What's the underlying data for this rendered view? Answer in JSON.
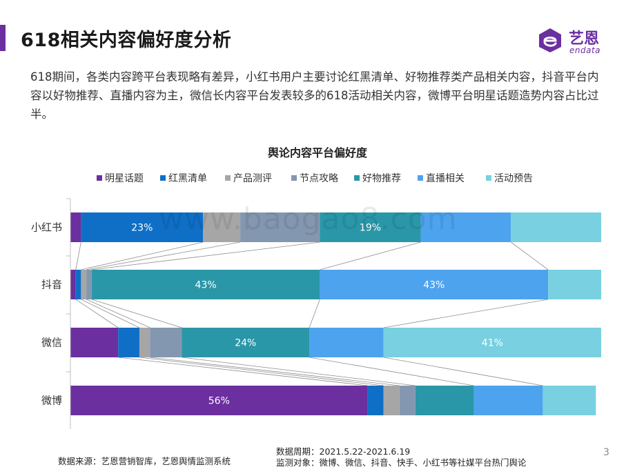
{
  "header": {
    "title": "618相关内容偏好度分析",
    "logo_name": "艺恩",
    "logo_sub": "endata"
  },
  "intro_text": "618期间，各类内容跨平台表现略有差异，小红书用户主要讨论红黑清单、好物推荐类产品相关内容，抖音平台内容以好物推荐、直播内容为主，微信长内容平台发表较多的618活动相关内容，微博平台明星话题造势内容占比过半。",
  "watermark": "www.baogao8.com",
  "chart_data": {
    "type": "bar",
    "orientation": "horizontal",
    "stacked": "percent",
    "title": "舆论内容平台偏好度",
    "categories": [
      "小红书",
      "抖音",
      "微信",
      "微博"
    ],
    "xlim": [
      0,
      100
    ],
    "legend_position": "top",
    "series": [
      {
        "name": "明星话题",
        "color": "#6b2fa0",
        "values": [
          2,
          1,
          9,
          56
        ]
      },
      {
        "name": "红黑清单",
        "color": "#0f6fc6",
        "values": [
          23,
          1,
          4,
          3
        ]
      },
      {
        "name": "产品测评",
        "color": "#a6a6a6",
        "values": [
          7,
          1,
          2,
          3
        ]
      },
      {
        "name": "节点攻略",
        "color": "#8497b0",
        "values": [
          15,
          1,
          6,
          3
        ]
      },
      {
        "name": "好物推荐",
        "color": "#2a97a8",
        "values": [
          19,
          43,
          24,
          11
        ]
      },
      {
        "name": "直播相关",
        "color": "#4ea3ee",
        "values": [
          17,
          43,
          14,
          13
        ]
      },
      {
        "name": "活动预告",
        "color": "#78d0e0",
        "values": [
          17,
          10,
          41,
          10
        ]
      }
    ],
    "data_labels": [
      {
        "category": "小红书",
        "series": "红黑清单",
        "text": "23%"
      },
      {
        "category": "小红书",
        "series": "好物推荐",
        "text": "19%"
      },
      {
        "category": "抖音",
        "series": "好物推荐",
        "text": "43%"
      },
      {
        "category": "抖音",
        "series": "直播相关",
        "text": "43%"
      },
      {
        "category": "微信",
        "series": "好物推荐",
        "text": "24%"
      },
      {
        "category": "微信",
        "series": "活动预告",
        "text": "41%"
      },
      {
        "category": "微博",
        "series": "明星话题",
        "text": "56%"
      }
    ]
  },
  "footer": {
    "source": "数据来源：艺恩营销智库，艺恩舆情监测系统",
    "period": "数据周期：2021.5.22-2021.6.19",
    "target": "监测对象：微博、微信、抖音、快手、小红书等社媒平台热门舆论",
    "page_number": "3"
  }
}
